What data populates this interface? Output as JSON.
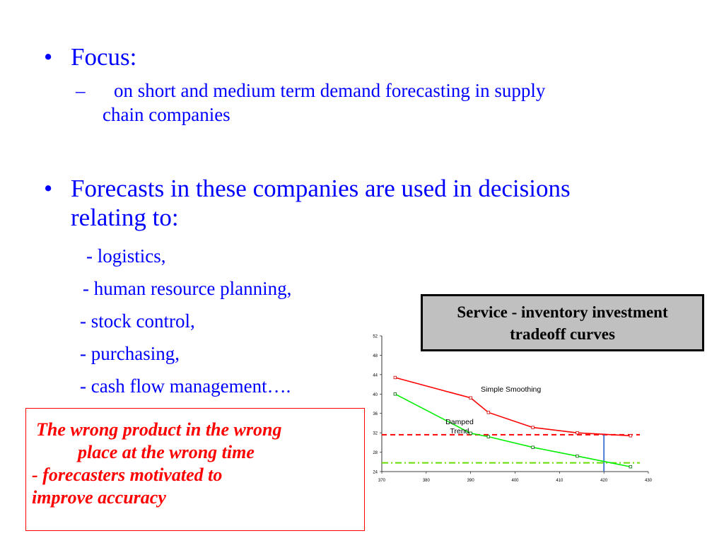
{
  "bullets": {
    "focus": {
      "marker": "•",
      "text": "Focus:",
      "sub_marker": "–",
      "sub_line1": "on short and medium term demand forecasting in supply",
      "sub_line2": "chain companies"
    },
    "forecasts": {
      "marker": "•",
      "line1": "Forecasts in these companies are used in decisions",
      "line2": "relating to:"
    },
    "items": [
      "- logistics,",
      "- human resource planning,",
      "- stock control,",
      "- purchasing,",
      "- cash flow management…."
    ]
  },
  "callout": {
    "line1": "Service - inventory investment",
    "line2": "tradeoff curves"
  },
  "quote": {
    "line1": "The wrong product in the wrong",
    "line2": "place at the wrong time",
    "line3": " - forecasters motivated to",
    "line4": "improve accuracy"
  },
  "colors": {
    "text_blue": "#0000ff",
    "quote_red": "#ff0000",
    "series_red": "#ff0000",
    "series_green": "#00ee00",
    "ref_red": "#ff0000",
    "ref_green": "#66dd00",
    "marker_blue": "#4a7bd6"
  },
  "chart_data": {
    "type": "line",
    "xlim": [
      370,
      430
    ],
    "ylim": [
      24,
      52
    ],
    "xticks": [
      370,
      380,
      390,
      400,
      410,
      420,
      430
    ],
    "yticks": [
      24,
      28,
      32,
      36,
      40,
      44,
      48,
      52
    ],
    "series": [
      {
        "name": "Simple Smoothing",
        "x": [
          373,
          390,
          394,
          404,
          414,
          426
        ],
        "y": [
          43.4,
          39.2,
          36.2,
          33.1,
          32.0,
          31.4
        ]
      },
      {
        "name": "Damped Trend",
        "x": [
          373,
          390,
          394,
          404,
          414,
          426
        ],
        "y": [
          40.0,
          31.9,
          31.2,
          29.0,
          27.2,
          25.0
        ]
      }
    ],
    "reference_lines": [
      {
        "axis": "y",
        "value": 31.6,
        "style": "dashed"
      },
      {
        "axis": "y",
        "value": 25.8,
        "style": "dash-dot"
      },
      {
        "axis": "x",
        "value": 420,
        "style": "solid"
      }
    ]
  }
}
